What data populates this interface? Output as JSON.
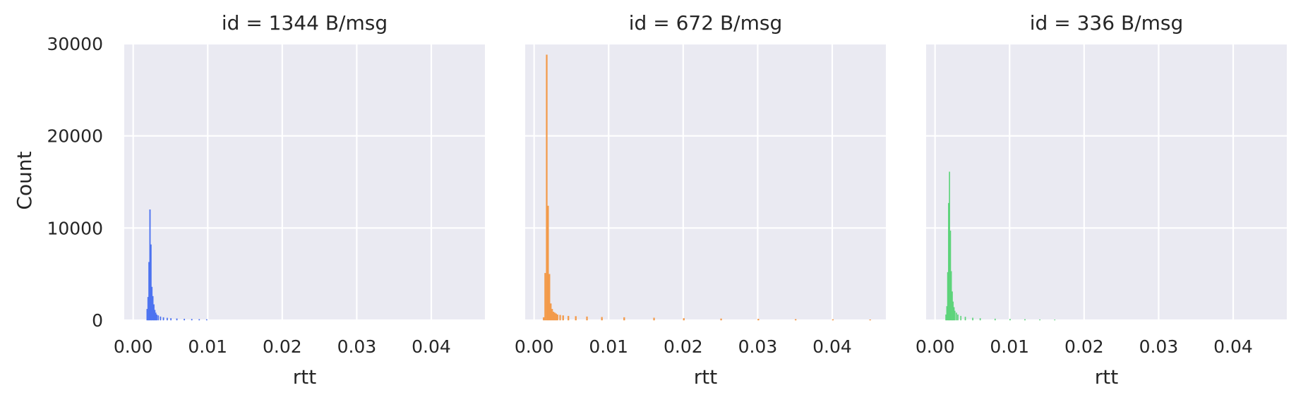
{
  "chart_data": {
    "type": "bar",
    "ylabel": "Count",
    "ylim": [
      0,
      30000
    ],
    "yticks": [
      0,
      10000,
      20000,
      30000
    ],
    "xlim": [
      -0.0012,
      0.0472
    ],
    "xticks": [
      "0.00",
      "0.01",
      "0.02",
      "0.03",
      "0.04"
    ],
    "grid": true,
    "panels": [
      {
        "title": "id = 1344 B/msg",
        "xlabel": "rtt",
        "color": "#4c72f0",
        "bin_width": 0.00013,
        "x": [
          0.0018,
          0.00193,
          0.00206,
          0.00219,
          0.00232,
          0.00245,
          0.00258,
          0.00271,
          0.00284,
          0.00297,
          0.0031,
          0.0033,
          0.0036,
          0.004,
          0.0045,
          0.005,
          0.0058,
          0.0068,
          0.0078,
          0.0088,
          0.0098
        ],
        "values": [
          1200,
          2500,
          6300,
          12000,
          8200,
          3600,
          2600,
          1700,
          1100,
          800,
          600,
          500,
          380,
          300,
          240,
          200,
          170,
          140,
          120,
          100,
          80
        ]
      },
      {
        "title": "id = 672 B/msg",
        "xlabel": "rtt",
        "color": "#f39a4a",
        "bin_width": 0.00018,
        "x": [
          0.0012,
          0.0014,
          0.0016,
          0.00178,
          0.00196,
          0.00214,
          0.00232,
          0.0025,
          0.00268,
          0.00286,
          0.00304,
          0.0034,
          0.0038,
          0.0045,
          0.0055,
          0.007,
          0.009,
          0.012,
          0.016,
          0.02,
          0.025,
          0.03,
          0.035,
          0.04,
          0.045
        ],
        "values": [
          300,
          5100,
          28800,
          12400,
          5000,
          1800,
          1200,
          900,
          800,
          700,
          600,
          550,
          500,
          450,
          420,
          380,
          330,
          300,
          250,
          200,
          160,
          130,
          100,
          80,
          60
        ]
      },
      {
        "title": "id = 336 B/msg",
        "xlabel": "rtt",
        "color": "#5dd37a",
        "bin_width": 0.00012,
        "x": [
          0.0014,
          0.00152,
          0.00164,
          0.00176,
          0.00188,
          0.002,
          0.00212,
          0.00224,
          0.00236,
          0.00248,
          0.0026,
          0.0028,
          0.003,
          0.0034,
          0.004,
          0.005,
          0.006,
          0.008,
          0.01,
          0.012,
          0.014,
          0.016
        ],
        "values": [
          600,
          1500,
          5200,
          12700,
          16100,
          9700,
          5300,
          3100,
          2000,
          1400,
          1000,
          800,
          600,
          450,
          350,
          250,
          200,
          150,
          120,
          90,
          70,
          50
        ]
      }
    ]
  }
}
